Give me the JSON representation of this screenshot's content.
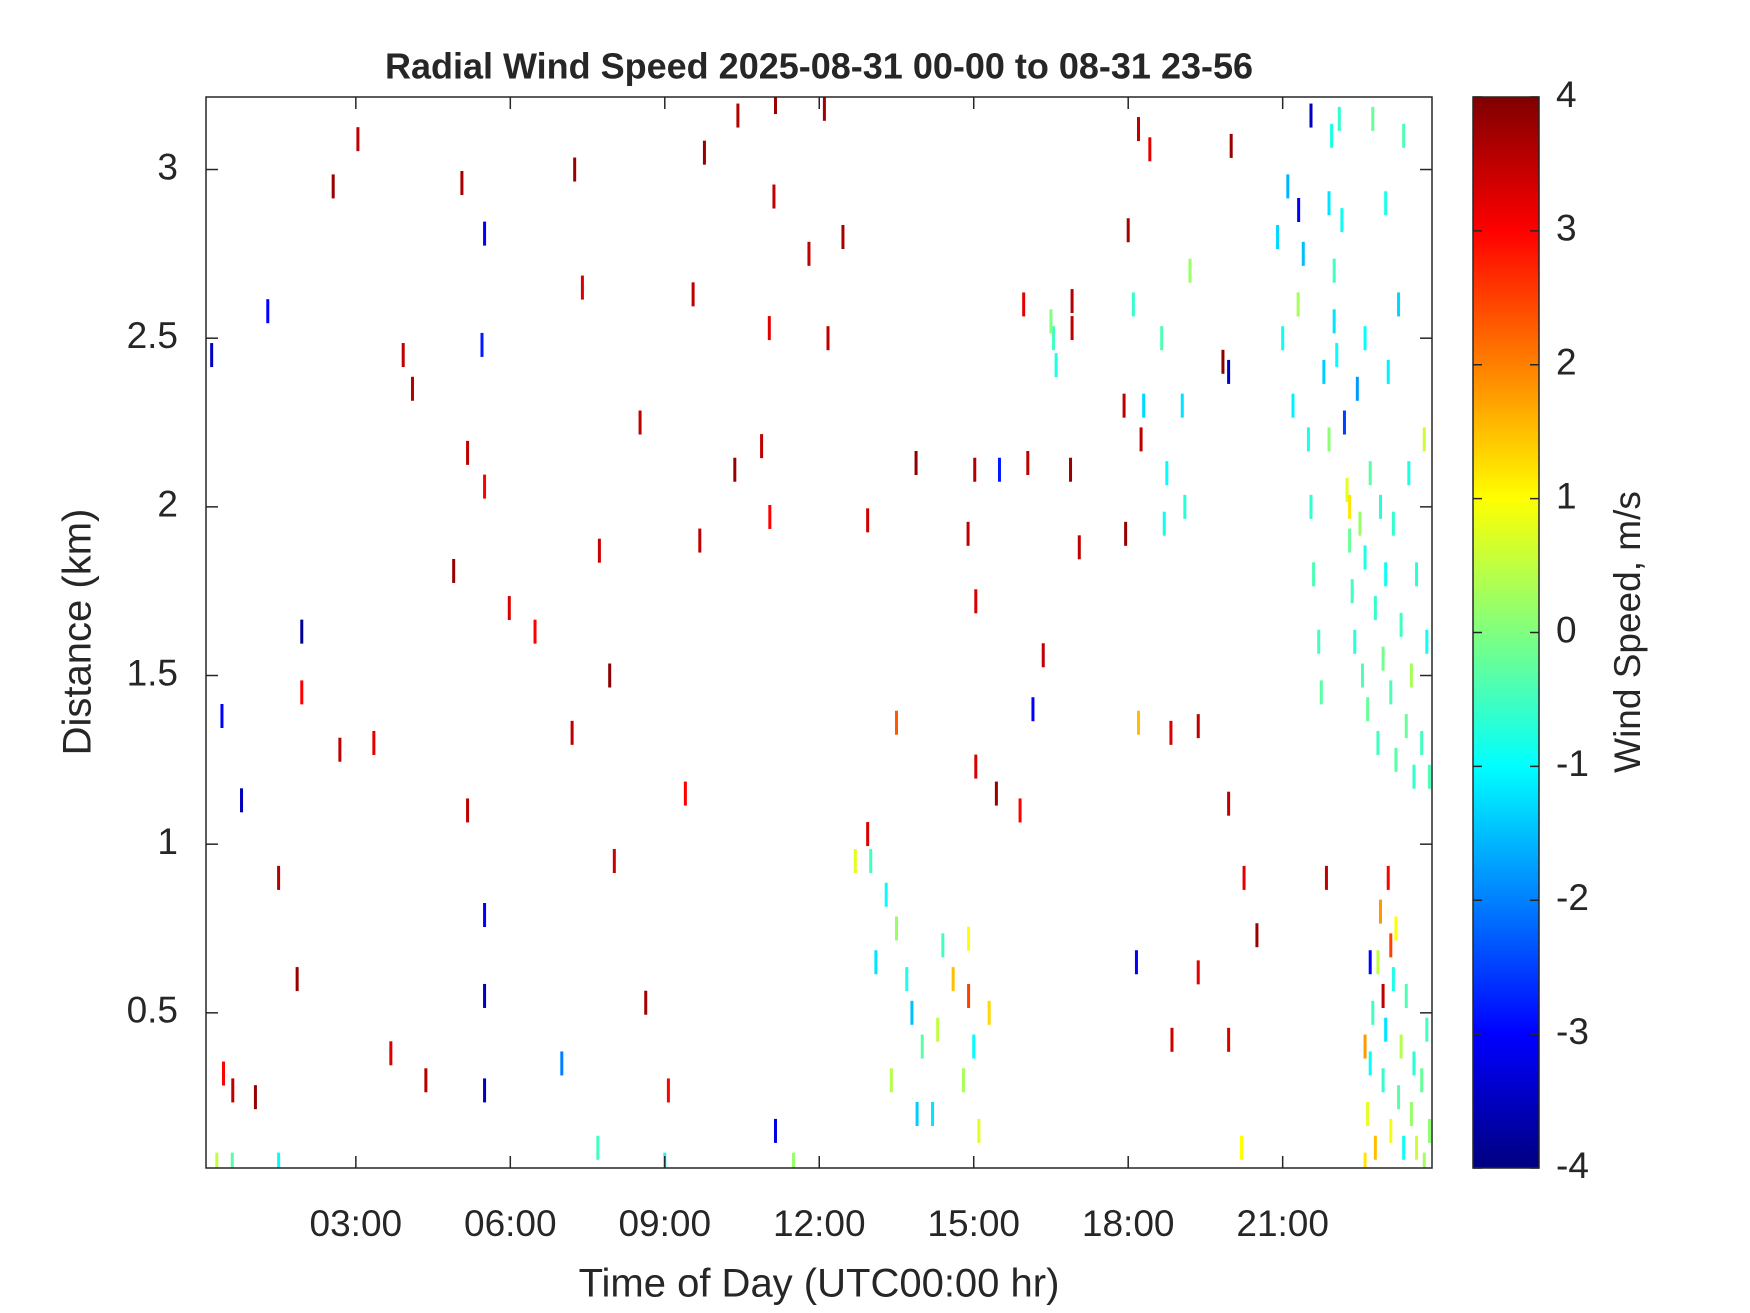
{
  "chart_data": {
    "type": "heatmap",
    "title": "Radial Wind Speed 2025-08-31 00-00 to 08-31 23-56",
    "x_label": "Time of Day (UTC00:00 hr)",
    "y_label": "Distance (km)",
    "colorbar_label": "Wind Speed, m/s",
    "colormap": "jet",
    "xlim": [
      0.09,
      23.9
    ],
    "xticks": [
      {
        "value": 3,
        "label": "03:00"
      },
      {
        "value": 6,
        "label": "06:00"
      },
      {
        "value": 9,
        "label": "09:00"
      },
      {
        "value": 12,
        "label": "12:00"
      },
      {
        "value": 15,
        "label": "15:00"
      },
      {
        "value": 18,
        "label": "18:00"
      },
      {
        "value": 21,
        "label": "21:00"
      }
    ],
    "ylim": [
      0.04,
      3.215
    ],
    "yticks": [
      0.5,
      1,
      1.5,
      2,
      2.5,
      3
    ],
    "clim": [
      -4,
      4
    ],
    "cticks": [
      -4,
      -3,
      -2,
      -1,
      0,
      1,
      2,
      3,
      4
    ],
    "x": [
      0.2,
      2.56,
      3.04,
      1.29,
      5.06,
      5.5,
      5.45,
      5.17,
      5.5,
      4.9,
      1.95,
      1.95,
      3.92,
      4.1,
      7.25,
      7.4,
      8.52,
      7.93,
      7.2,
      9.77,
      10.42,
      11.15,
      12.1,
      11.12,
      11.8,
      12.46,
      11.03,
      12.17,
      9.55,
      10.88,
      10.36,
      11.04,
      9.68,
      7.73,
      6.48,
      5.98,
      5.17,
      5.5,
      5.5,
      5.5,
      3.68,
      4.36,
      9.07,
      8.63,
      8.02,
      9.4,
      1.86,
      1.5,
      0.78,
      0.4,
      3.35,
      2.69,
      1.05,
      0.61,
      0.43,
      11.15,
      7,
      13.88,
      15.02,
      15.5,
      16.05,
      16.88,
      17.05,
      14.89,
      15.04,
      12.94,
      16.15,
      16.35,
      15.04,
      15.44,
      15.9,
      16.91,
      15.97,
      16.91,
      18,
      17.92,
      17.95,
      18.25,
      18.2,
      18.42,
      19.84,
      19.95,
      20,
      19.95,
      18.83,
      19.36,
      19.95,
      19.36,
      18.85,
      18.16,
      20.25,
      20.5,
      21.85,
      21.55,
      21.31,
      13.5,
      12.94,
      18.2,
      13,
      13.3,
      13.5,
      13.7,
      13.8,
      14,
      14.3,
      14.6,
      14.9,
      15,
      14.8,
      15.1,
      14.2,
      13.4,
      13.1,
      12.7,
      15.3,
      14.4,
      13.9,
      14.9,
      16.55,
      16.6,
      16.5,
      18.1,
      18.65,
      18.75,
      19.1,
      19.05,
      18.7,
      19.2,
      18.3,
      20.9,
      21,
      21.1,
      21.2,
      21.3,
      21.4,
      21.5,
      21.55,
      21.6,
      21.7,
      21.75,
      21.8,
      21.9,
      21.95,
      22,
      22.05,
      22.1,
      22.2,
      22.25,
      22.3,
      22.35,
      22.4,
      22.45,
      22.5,
      22.55,
      22.6,
      22.65,
      22.7,
      22.75,
      22.8,
      22.85,
      22.9,
      22.95,
      23,
      23.05,
      23.1,
      23.15,
      23.2,
      23.25,
      23.3,
      23.35,
      23.4,
      23.45,
      23.5,
      23.55,
      23.6,
      23.7,
      23.75,
      23.8,
      23.85,
      22.15,
      22,
      21.9,
      22.3,
      23,
      22.6,
      22.6,
      22.65,
      22.7,
      22.75,
      22.8,
      22.85,
      22.9,
      22.95,
      23,
      23.05,
      23.1,
      23.15,
      23.2,
      23.25,
      23.3,
      23.35,
      23.4,
      23.5,
      23.55,
      23.6,
      23.7,
      23.75,
      23.8,
      23.85,
      22.95,
      22.7,
      22.6,
      23.1,
      0.3,
      0.6,
      1.5,
      7.7,
      9,
      11.5,
      20.2
    ],
    "y": [
      2.45,
      2.95,
      3.09,
      2.58,
      2.96,
      2.81,
      2.48,
      2.16,
      2.06,
      1.81,
      1.63,
      1.45,
      2.45,
      2.35,
      3,
      2.65,
      2.25,
      1.5,
      1.33,
      3.05,
      3.16,
      3.2,
      3.18,
      2.92,
      2.75,
      2.8,
      2.53,
      2.5,
      2.63,
      2.18,
      2.11,
      1.97,
      1.9,
      1.87,
      1.63,
      1.7,
      1.1,
      0.79,
      0.55,
      0.27,
      0.38,
      0.3,
      0.27,
      0.53,
      0.95,
      1.15,
      0.6,
      0.9,
      1.13,
      1.38,
      1.3,
      1.28,
      0.25,
      0.27,
      0.32,
      0.15,
      0.35,
      2.13,
      2.11,
      2.11,
      2.13,
      2.11,
      1.88,
      1.92,
      1.72,
      1.96,
      1.4,
      1.56,
      1.23,
      1.15,
      1.1,
      2.61,
      2.6,
      2.53,
      2.82,
      2.3,
      1.92,
      2.2,
      3.12,
      3.06,
      2.43,
      2.4,
      3.07,
      1.12,
      1.33,
      1.35,
      0.42,
      0.62,
      0.42,
      0.65,
      0.9,
      0.73,
      0.9,
      3.16,
      2.88,
      1.36,
      1.03,
      1.36,
      0.95,
      0.85,
      0.75,
      0.6,
      0.5,
      0.4,
      0.45,
      0.6,
      0.55,
      0.4,
      0.3,
      0.15,
      0.2,
      0.3,
      0.65,
      0.95,
      0.5,
      0.7,
      0.2,
      0.72,
      2.5,
      2.42,
      2.55,
      2.6,
      2.5,
      2.1,
      2,
      2.3,
      1.95,
      2.7,
      2.3,
      2.8,
      2.5,
      2.95,
      2.3,
      2.6,
      2.75,
      2.2,
      2,
      1.8,
      1.6,
      1.45,
      2.4,
      2.9,
      3.1,
      2.7,
      2.45,
      3.15,
      2.25,
      2.05,
      1.9,
      1.75,
      1.6,
      2.35,
      1.95,
      1.5,
      1.85,
      1.4,
      2.1,
      3.15,
      1.7,
      1.3,
      2,
      1.55,
      1.8,
      2.4,
      1.45,
      1.95,
      1.25,
      2.6,
      1.65,
      3.1,
      1.35,
      2.1,
      1.5,
      1.2,
      1.8,
      1.3,
      2.2,
      1.6,
      1.2,
      2.85,
      2.55,
      2.2,
      2,
      2.9,
      2.5,
      0.05,
      0.2,
      0.35,
      0.5,
      0.1,
      0.65,
      0.8,
      0.3,
      0.45,
      0.9,
      0.15,
      0.6,
      0.75,
      0.25,
      0.4,
      0.1,
      0.55,
      0.2,
      0.35,
      0.1,
      0.3,
      0.05,
      0.45,
      0.15,
      0.55,
      0.65,
      0.4,
      0.7,
      0.05,
      0.05,
      0.05,
      0.1,
      0.05,
      0.05,
      0.1
    ],
    "values": [
      -3.5,
      3.8,
      3.5,
      -3,
      3.7,
      -3,
      -2.8,
      3.5,
      3,
      3.8,
      -3.8,
      3,
      3.5,
      3.6,
      3.8,
      3.3,
      3.5,
      3.9,
      3.5,
      3.8,
      3.6,
      3.8,
      3.7,
      3.5,
      3.5,
      3.7,
      3.2,
      3.5,
      3.5,
      3.5,
      3.8,
      3,
      3.5,
      3.4,
      3,
      3.3,
      3.5,
      -3,
      -3.5,
      -3.5,
      3.3,
      3.6,
      3,
      3.7,
      3.4,
      3,
      3.8,
      3.6,
      -3.5,
      -3,
      3.2,
      3.5,
      3.8,
      3.5,
      3,
      -3.2,
      -2,
      3.9,
      3.6,
      -2.8,
      3.5,
      3.8,
      3.5,
      3.5,
      3.3,
      3.4,
      -3,
      3.5,
      3.3,
      3.8,
      3,
      3.6,
      3.2,
      3.5,
      3.7,
      3.5,
      3.8,
      3.5,
      3.5,
      3.2,
      3.9,
      -3.5,
      3.8,
      3.5,
      3.3,
      3.5,
      3.3,
      3.2,
      3.4,
      -3,
      3.2,
      3.8,
      3.5,
      -3.5,
      -3,
      2.3,
      3.3,
      1.5,
      -0.5,
      -1,
      0.2,
      -0.8,
      -1.5,
      -0.3,
      0.5,
      1.5,
      2.5,
      -1,
      0.3,
      0.8,
      -1.2,
      0.4,
      -1.2,
      0.8,
      1.3,
      -0.5,
      -1.4,
      1,
      -0.5,
      -0.8,
      0,
      -0.6,
      -0.4,
      -1,
      -0.7,
      -1.2,
      -0.9,
      0.2,
      -1.3,
      -1.3,
      -0.9,
      -1.6,
      -1.1,
      0.3,
      -1.5,
      -0.8,
      -0.6,
      -0.4,
      -0.5,
      -0.3,
      -1.4,
      -1.2,
      -0.8,
      -0.5,
      -1,
      -0.6,
      -2.5,
      0.8,
      -0.2,
      -0.5,
      -0.7,
      -1.8,
      0.2,
      -0.4,
      -0.8,
      -0.2,
      -0.3,
      -0.2,
      -0.6,
      -0.5,
      -0.7,
      -0.1,
      -0.9,
      -1.1,
      -0.4,
      -0.6,
      -0.3,
      -1.3,
      -0.5,
      -0.4,
      -0.2,
      -0.8,
      0.3,
      -0.6,
      -0.7,
      -0.5,
      0.6,
      -0.9,
      -0.4,
      -0.9,
      -1.2,
      0.1,
      1.2,
      -0.8,
      -1,
      1.2,
      0.8,
      -1,
      -0.5,
      1.5,
      0.5,
      1.8,
      -0.6,
      -1.2,
      3,
      0.9,
      -0.8,
      1,
      -0.3,
      0.4,
      -0.9,
      -0.4,
      0.2,
      -0.7,
      0.6,
      -0.2,
      0.3,
      -0.5,
      0.1,
      3.5,
      -3,
      1.8,
      2.5,
      0.5,
      -0.3,
      -1,
      -0.5,
      -0.8,
      0.2,
      1
    ]
  }
}
